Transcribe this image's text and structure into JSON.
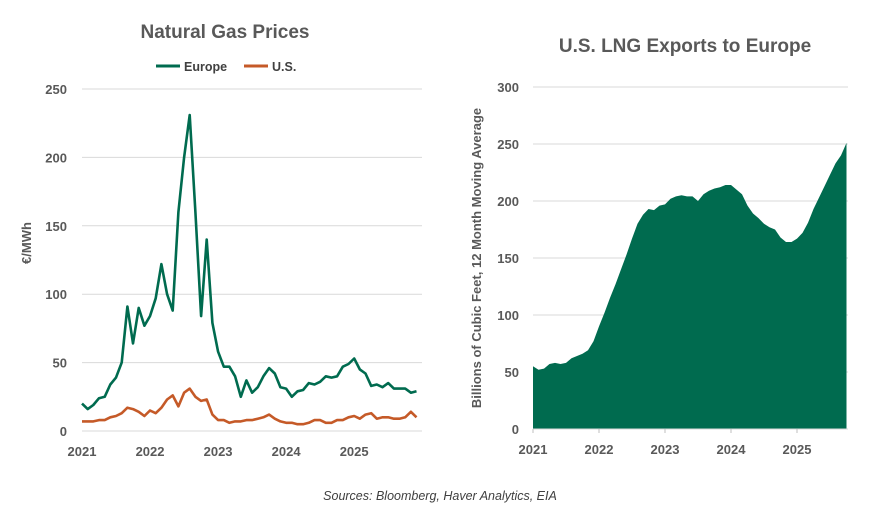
{
  "source_note": "Sources: Bloomberg, Haver Analytics, EIA",
  "colors": {
    "europe": "#006b4f",
    "us": "#c55a28",
    "grid": "#d9d9d9",
    "area": "#006b4f"
  },
  "chart_data": [
    {
      "type": "line",
      "title": "Natural Gas Prices",
      "ylabel": "€/MWh",
      "xlabel": "",
      "ylim": [
        0,
        250
      ],
      "yticks": [
        "0",
        "50",
        "100",
        "150",
        "200",
        "250"
      ],
      "xticks": [
        "2021",
        "2022",
        "2023",
        "2024",
        "2025"
      ],
      "x_range": [
        "2021-01",
        "2025-12"
      ],
      "frequency": "monthly",
      "grid": true,
      "legend": "top",
      "series": [
        {
          "name": "Europe",
          "color": "#006b4f",
          "values": [
            20,
            16,
            19,
            24,
            25,
            34,
            39,
            50,
            91,
            64,
            90,
            77,
            84,
            97,
            122,
            100,
            88,
            160,
            200,
            231,
            160,
            84,
            140,
            79,
            58,
            47,
            47,
            40,
            25,
            37,
            28,
            32,
            40,
            46,
            42,
            32,
            31,
            25,
            29,
            30,
            35,
            34,
            36,
            40,
            39,
            40,
            47,
            49,
            53,
            45,
            42,
            33,
            34,
            32,
            35,
            31,
            31,
            31,
            28,
            29
          ]
        },
        {
          "name": "U.S.",
          "color": "#c55a28",
          "values": [
            7,
            7,
            7,
            8,
            8,
            10,
            11,
            13,
            17,
            16,
            14,
            11,
            15,
            13,
            17,
            23,
            26,
            18,
            28,
            31,
            25,
            22,
            23,
            12,
            8,
            8,
            6,
            7,
            7,
            8,
            8,
            9,
            10,
            12,
            9,
            7,
            6,
            6,
            5,
            5,
            6,
            8,
            8,
            6,
            6,
            8,
            8,
            10,
            11,
            9,
            12,
            13,
            9,
            10,
            10,
            9,
            9,
            10,
            14,
            10
          ]
        }
      ]
    },
    {
      "type": "area",
      "title": "U.S. LNG Exports to Europe",
      "ylabel": "Billions of Cubic Feet, 12 Month Moving Average",
      "xlabel": "",
      "ylim": [
        0,
        300
      ],
      "yticks": [
        "0",
        "50",
        "100",
        "150",
        "200",
        "250",
        "300"
      ],
      "xticks": [
        "2021",
        "2022",
        "2023",
        "2024",
        "2025"
      ],
      "x_range": [
        "2021-01",
        "2025-10"
      ],
      "frequency": "monthly",
      "grid": true,
      "series": [
        {
          "color": "#006b4f",
          "values": [
            55,
            52,
            53,
            57,
            58,
            57,
            58,
            62,
            64,
            66,
            69,
            77,
            90,
            102,
            115,
            127,
            140,
            153,
            167,
            180,
            188,
            193,
            192,
            196,
            197,
            202,
            204,
            205,
            204,
            204,
            200,
            206,
            209,
            211,
            212,
            214,
            214,
            210,
            206,
            196,
            189,
            185,
            180,
            177,
            175,
            168,
            164,
            164,
            167,
            172,
            181,
            193,
            203,
            213,
            223,
            233,
            240,
            251
          ]
        }
      ]
    }
  ]
}
